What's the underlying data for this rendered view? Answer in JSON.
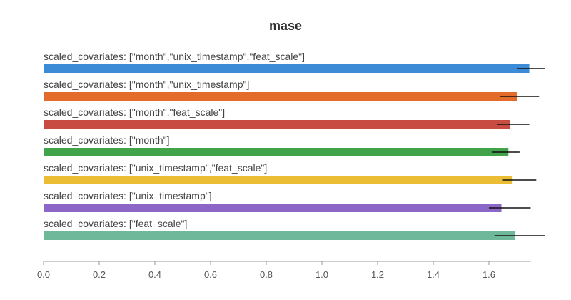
{
  "chart_data": {
    "type": "bar",
    "orientation": "horizontal",
    "title": "mase",
    "xlabel": "",
    "ylabel": "",
    "xlim": [
      0,
      1.75
    ],
    "xticks": [
      "0.0",
      "0.2",
      "0.4",
      "0.6",
      "0.8",
      "1.0",
      "1.2",
      "1.4",
      "1.6"
    ],
    "series": [
      {
        "label": "scaled_covariates: [\"month\",\"unix_timestamp\",\"feat_scale\"]",
        "value": 1.745,
        "error_low": 1.7,
        "error_high": 1.8,
        "color": "#3b8bd6"
      },
      {
        "label": "scaled_covariates: [\"month\",\"unix_timestamp\"]",
        "value": 1.7,
        "error_low": 1.64,
        "error_high": 1.78,
        "color": "#e36b2c"
      },
      {
        "label": "scaled_covariates: [\"month\",\"feat_scale\"]",
        "value": 1.675,
        "error_low": 1.63,
        "error_high": 1.745,
        "color": "#c94c42"
      },
      {
        "label": "scaled_covariates: [\"month\"]",
        "value": 1.67,
        "error_low": 1.61,
        "error_high": 1.71,
        "color": "#43a34a"
      },
      {
        "label": "scaled_covariates: [\"unix_timestamp\",\"feat_scale\"]",
        "value": 1.685,
        "error_low": 1.65,
        "error_high": 1.77,
        "color": "#ebbd35"
      },
      {
        "label": "scaled_covariates: [\"unix_timestamp\"]",
        "value": 1.645,
        "error_low": 1.6,
        "error_high": 1.75,
        "color": "#8b68c8"
      },
      {
        "label": "scaled_covariates: [\"feat_scale\"]",
        "value": 1.695,
        "error_low": 1.62,
        "error_high": 1.8,
        "color": "#6fb89a"
      }
    ]
  }
}
